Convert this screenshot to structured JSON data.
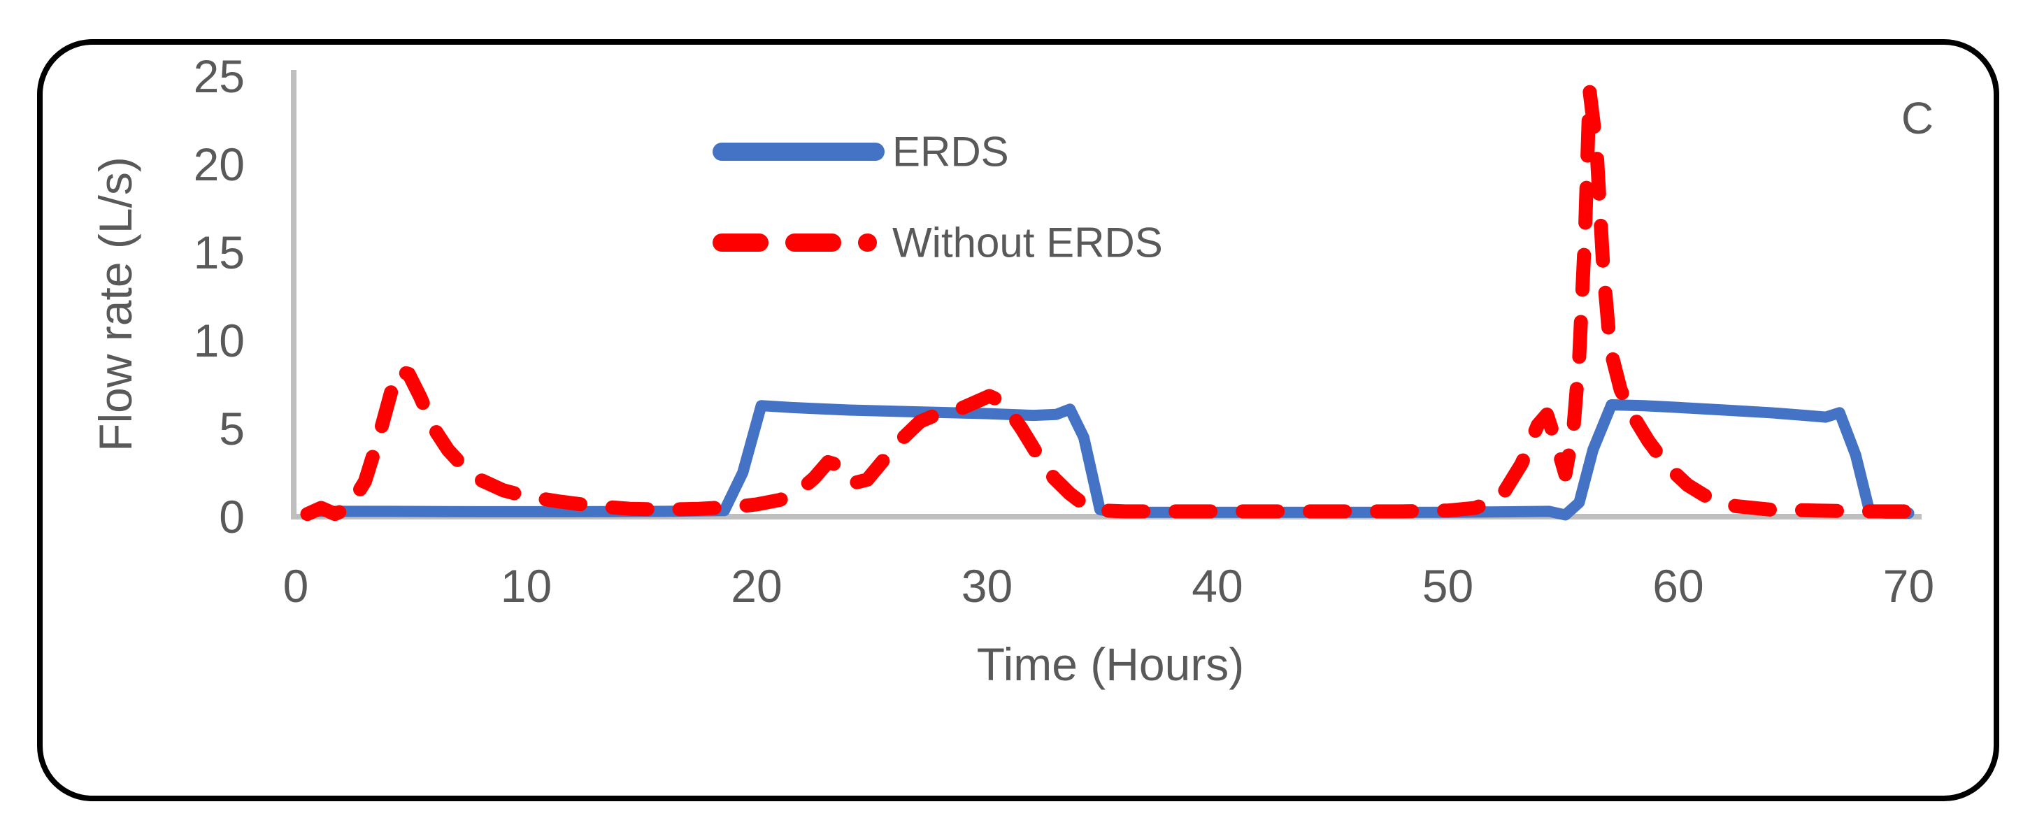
{
  "figure": {
    "panel_label": "C",
    "background": "#FFFFFF",
    "border_color": "#000000"
  },
  "axes": {
    "x_title": "Time (Hours)",
    "y_title": "Flow rate (L/s)",
    "axis_line_color": "#BFBFBF",
    "text_color": "#595959"
  },
  "legend": {
    "items": [
      {
        "label": "ERDS",
        "color": "#4472C4",
        "style": "solid"
      },
      {
        "label": "Without ERDS",
        "color": "#FF0000",
        "style": "dashed"
      }
    ]
  },
  "chart_data": {
    "type": "line",
    "title": "",
    "xlabel": "Time (Hours)",
    "ylabel": "Flow rate (L/s)",
    "xlim": [
      0,
      70
    ],
    "ylim": [
      0,
      25
    ],
    "x_ticks": [
      0,
      10,
      20,
      30,
      40,
      50,
      60,
      70
    ],
    "y_ticks": [
      0,
      5,
      10,
      15,
      20,
      25
    ],
    "grid": false,
    "legend_position": "top-center-inside",
    "series": [
      {
        "name": "ERDS",
        "color": "#4472C4",
        "style": "solid",
        "stroke_width": 16,
        "points": [
          [
            1,
            0.3
          ],
          [
            4,
            0.3
          ],
          [
            8,
            0.28
          ],
          [
            12,
            0.28
          ],
          [
            16,
            0.3
          ],
          [
            18.6,
            0.35
          ],
          [
            19.4,
            2.5
          ],
          [
            20.2,
            6.3
          ],
          [
            21.5,
            6.2
          ],
          [
            24,
            6.05
          ],
          [
            27,
            5.95
          ],
          [
            30,
            5.85
          ],
          [
            32,
            5.75
          ],
          [
            33,
            5.8
          ],
          [
            33.6,
            6.1
          ],
          [
            34.2,
            4.5
          ],
          [
            34.9,
            0.4
          ],
          [
            35.5,
            0.25
          ],
          [
            38,
            0.25
          ],
          [
            42,
            0.25
          ],
          [
            46,
            0.25
          ],
          [
            50,
            0.25
          ],
          [
            53,
            0.28
          ],
          [
            54.4,
            0.3
          ],
          [
            55.1,
            0.1
          ],
          [
            55.7,
            0.8
          ],
          [
            56.3,
            3.8
          ],
          [
            57.1,
            6.35
          ],
          [
            58.5,
            6.3
          ],
          [
            60,
            6.2
          ],
          [
            62,
            6.05
          ],
          [
            64,
            5.9
          ],
          [
            65.5,
            5.75
          ],
          [
            66.4,
            5.65
          ],
          [
            67.0,
            5.9
          ],
          [
            67.7,
            3.5
          ],
          [
            68.3,
            0.3
          ],
          [
            69,
            0.2
          ],
          [
            70,
            0.2
          ]
        ]
      },
      {
        "name": "Without ERDS",
        "color": "#FF0000",
        "style": "dashed",
        "stroke_width": 20,
        "points": [
          [
            0.5,
            0.15
          ],
          [
            1.1,
            0.5
          ],
          [
            1.7,
            0.15
          ],
          [
            2.3,
            0.5
          ],
          [
            3.0,
            2.0
          ],
          [
            3.6,
            4.5
          ],
          [
            4.1,
            6.9
          ],
          [
            4.4,
            8.3
          ],
          [
            4.9,
            8.1
          ],
          [
            5.4,
            6.8
          ],
          [
            6.0,
            5.0
          ],
          [
            6.6,
            3.8
          ],
          [
            7.3,
            2.8
          ],
          [
            8.0,
            2.1
          ],
          [
            9,
            1.5
          ],
          [
            10,
            1.15
          ],
          [
            11.5,
            0.85
          ],
          [
            13,
            0.6
          ],
          [
            14.5,
            0.45
          ],
          [
            16,
            0.4
          ],
          [
            17.5,
            0.45
          ],
          [
            19,
            0.55
          ],
          [
            20,
            0.7
          ],
          [
            21,
            0.95
          ],
          [
            21.8,
            1.4
          ],
          [
            22.5,
            2.2
          ],
          [
            23.1,
            3.1
          ],
          [
            23.6,
            2.9
          ],
          [
            24.2,
            1.9
          ],
          [
            24.8,
            2.1
          ],
          [
            25.5,
            3.2
          ],
          [
            26.3,
            4.4
          ],
          [
            27.1,
            5.4
          ],
          [
            28,
            5.9
          ],
          [
            28.8,
            6.1
          ],
          [
            29.5,
            6.5
          ],
          [
            30.1,
            6.85
          ],
          [
            30.7,
            6.5
          ],
          [
            31.5,
            5.0
          ],
          [
            32.2,
            3.5
          ],
          [
            32.9,
            2.2
          ],
          [
            33.6,
            1.3
          ],
          [
            34.3,
            0.6
          ],
          [
            35,
            0.35
          ],
          [
            36,
            0.3
          ],
          [
            38,
            0.3
          ],
          [
            40,
            0.3
          ],
          [
            42,
            0.3
          ],
          [
            44,
            0.3
          ],
          [
            46,
            0.3
          ],
          [
            48,
            0.3
          ],
          [
            50,
            0.35
          ],
          [
            51.2,
            0.5
          ],
          [
            52.3,
            1.1
          ],
          [
            53.2,
            3.0
          ],
          [
            53.9,
            5.2
          ],
          [
            54.3,
            5.8
          ],
          [
            54.7,
            4.2
          ],
          [
            55.1,
            2.4
          ],
          [
            55.45,
            5.0
          ],
          [
            55.7,
            9.0
          ],
          [
            55.95,
            16.0
          ],
          [
            56.15,
            24.2
          ],
          [
            56.45,
            21.0
          ],
          [
            56.75,
            14.0
          ],
          [
            57.05,
            9.5
          ],
          [
            57.5,
            7.2
          ],
          [
            58,
            5.8
          ],
          [
            58.7,
            4.3
          ],
          [
            59.5,
            2.9
          ],
          [
            60.4,
            1.8
          ],
          [
            61.4,
            1.0
          ],
          [
            62.5,
            0.6
          ],
          [
            64,
            0.4
          ],
          [
            66,
            0.35
          ],
          [
            68,
            0.3
          ],
          [
            69.5,
            0.3
          ],
          [
            70,
            0.3
          ]
        ]
      }
    ]
  }
}
